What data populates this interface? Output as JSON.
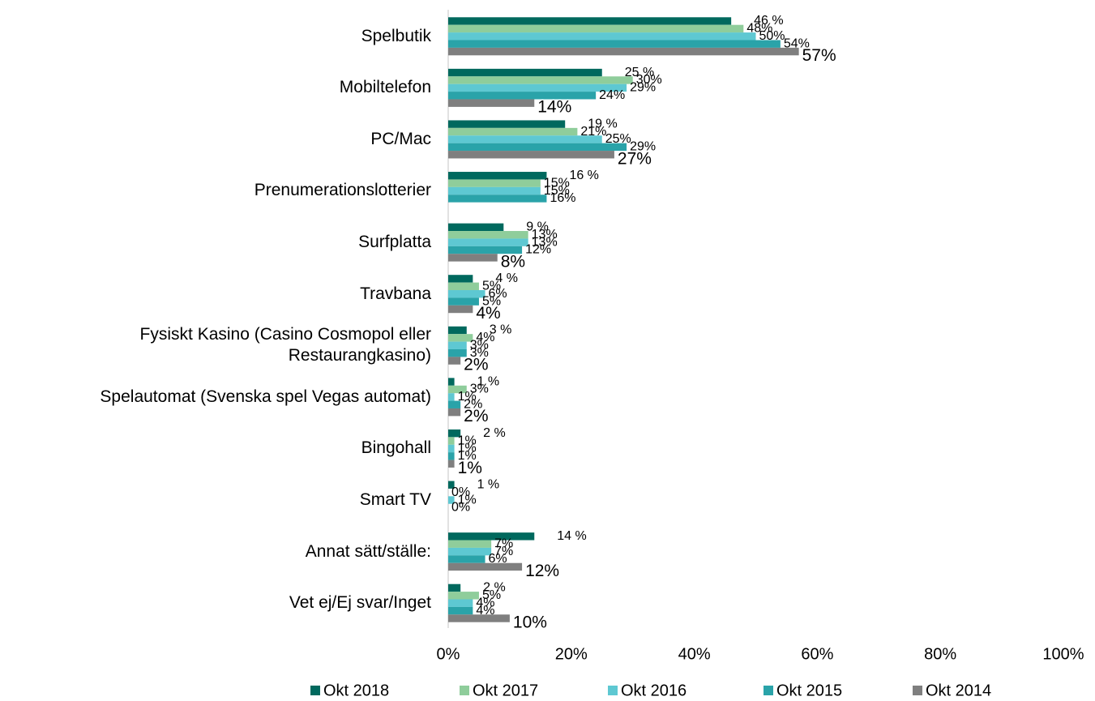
{
  "chart_data": {
    "type": "hbar",
    "categories": [
      "Spelbutik",
      "Mobiltelefon",
      "PC/Mac",
      "Prenumerationslotterier",
      "Surfplatta",
      "Travbana",
      "Fysiskt Kasino (Casino Cosmopol eller Restaurangkasino)",
      "Spelautomat (Svenska spel Vegas automat)",
      "Bingohall",
      "Smart TV",
      "Annat sätt/ställe:",
      "Vet ej/Ej svar/Inget"
    ],
    "series": [
      {
        "name": "Okt 2018",
        "color": "#00695e",
        "values": [
          46,
          25,
          19,
          16,
          9,
          4,
          3,
          1,
          2,
          1,
          14,
          2
        ],
        "value_labels": [
          "46 %",
          "25 %",
          "19 %",
          "16 %",
          "9 %",
          "4 %",
          "3 %",
          "1 %",
          "2 %",
          "1 %",
          "14 %",
          "2 %"
        ]
      },
      {
        "name": "Okt 2017",
        "color": "#8fcd9b",
        "values": [
          48,
          30,
          21,
          15,
          13,
          5,
          4,
          3,
          1,
          0,
          7,
          5
        ],
        "value_labels": [
          "48%",
          "30%",
          "21%",
          "15%",
          "13%",
          "5%",
          "4%",
          "3%",
          "1%",
          "0%",
          "7%",
          "5%"
        ]
      },
      {
        "name": "Okt 2016",
        "color": "#5ec8d2",
        "values": [
          50,
          29,
          25,
          15,
          13,
          6,
          3,
          1,
          1,
          1,
          7,
          4
        ],
        "value_labels": [
          "50%",
          "29%",
          "25%",
          "15%",
          "13%",
          "6%",
          "3%",
          "1%",
          "1%",
          "1%",
          "7%",
          "4%"
        ]
      },
      {
        "name": "Okt 2015",
        "color": "#2aa3a9",
        "values": [
          54,
          24,
          29,
          16,
          12,
          5,
          3,
          2,
          1,
          0,
          6,
          4
        ],
        "value_labels": [
          "54%",
          "24%",
          "29%",
          "16%",
          "12%",
          "5%",
          "3%",
          "2%",
          "1%",
          "0%",
          "6%",
          "4%"
        ]
      },
      {
        "name": "Okt 2014",
        "color": "#7f7f7f",
        "values": [
          57,
          14,
          27,
          null,
          8,
          4,
          2,
          2,
          1,
          null,
          12,
          10
        ],
        "value_labels": [
          "57%",
          "14%",
          "27%",
          null,
          "8%",
          "4%",
          "2%",
          "2%",
          "1%",
          null,
          "12%",
          "10%"
        ]
      }
    ],
    "xlim": [
      0,
      100
    ],
    "xticks": [
      {
        "value": 0,
        "label": "0%"
      },
      {
        "value": 20,
        "label": "20%"
      },
      {
        "value": 40,
        "label": "40%"
      },
      {
        "value": 60,
        "label": "60%"
      },
      {
        "value": 80,
        "label": "80%"
      },
      {
        "value": 100,
        "label": "100%"
      }
    ],
    "legend": "bottom"
  }
}
